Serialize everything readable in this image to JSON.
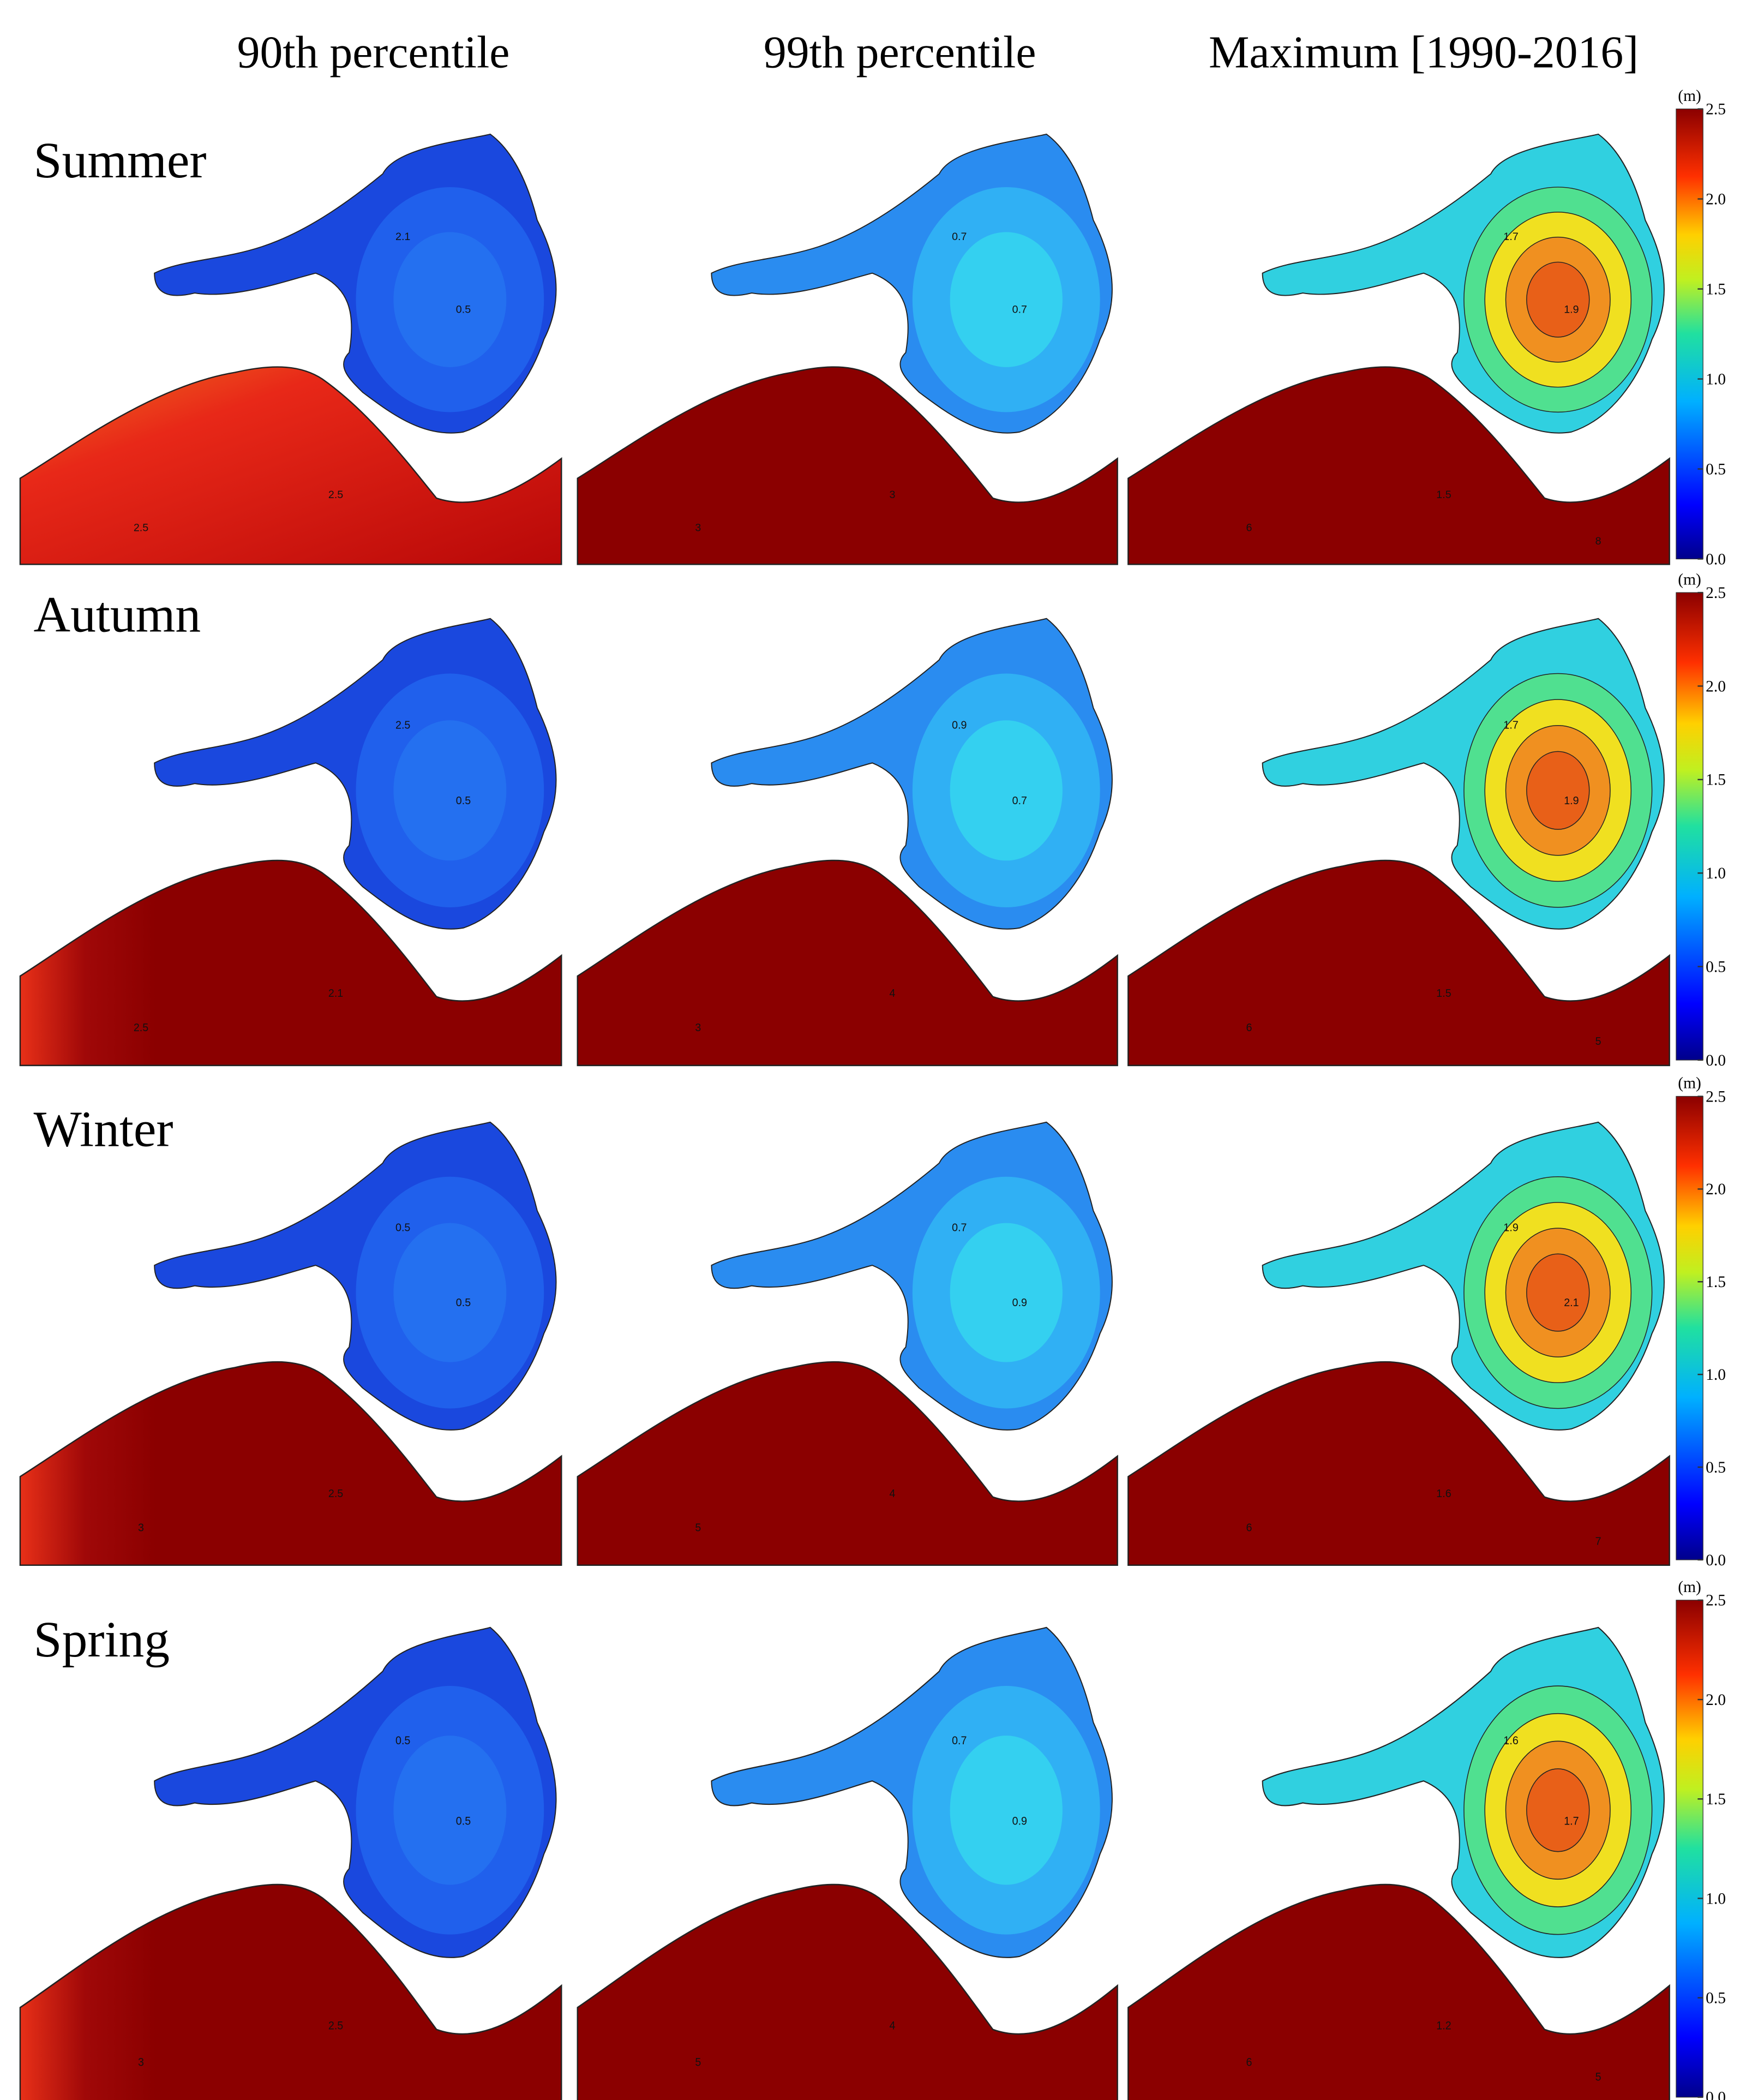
{
  "columns": [
    "90th percentile",
    "99th percentile",
    "Maximum [1990-2016]"
  ],
  "colorbar": {
    "unit": "(m)",
    "lim": [
      0,
      2.5
    ],
    "ticks": [
      {
        "value": 0,
        "label": "0.0"
      },
      0.5,
      {
        "value": 1,
        "label": "1.0"
      },
      1.5,
      {
        "value": 2,
        "label": "2.0"
      },
      2.5
    ]
  },
  "rows": [
    {
      "season": "Summer",
      "maps": [
        {
          "contour_labels": [
            "0.5",
            "2.1",
            "2.5",
            "2.5"
          ]
        },
        {
          "contour_labels": [
            "0.7",
            "0.7",
            "3",
            "3"
          ]
        },
        {
          "contour_labels": [
            "1.9",
            "1.7",
            "1.5",
            "6",
            "8"
          ]
        }
      ]
    },
    {
      "season": "Autumn",
      "maps": [
        {
          "contour_labels": [
            "0.5",
            "2.5",
            "2.1",
            "2.5"
          ]
        },
        {
          "contour_labels": [
            "0.7",
            "0.9",
            "4",
            "3"
          ]
        },
        {
          "contour_labels": [
            "1.9",
            "1.7",
            "1.5",
            "6",
            "5"
          ]
        }
      ]
    },
    {
      "season": "Winter",
      "maps": [
        {
          "contour_labels": [
            "0.5",
            "0.5",
            "2.5",
            "3"
          ]
        },
        {
          "contour_labels": [
            "0.9",
            "0.7",
            "4",
            "5"
          ]
        },
        {
          "contour_labels": [
            "2.1",
            "1.9",
            "1.6",
            "6",
            "7"
          ]
        }
      ]
    },
    {
      "season": "Spring",
      "maps": [
        {
          "contour_labels": [
            "0.5",
            "0.5",
            "2.5",
            "3"
          ]
        },
        {
          "contour_labels": [
            "0.9",
            "0.7",
            "4",
            "5"
          ]
        },
        {
          "contour_labels": [
            "1.7",
            "1.6",
            "1.2",
            "6",
            "5"
          ]
        }
      ]
    }
  ]
}
